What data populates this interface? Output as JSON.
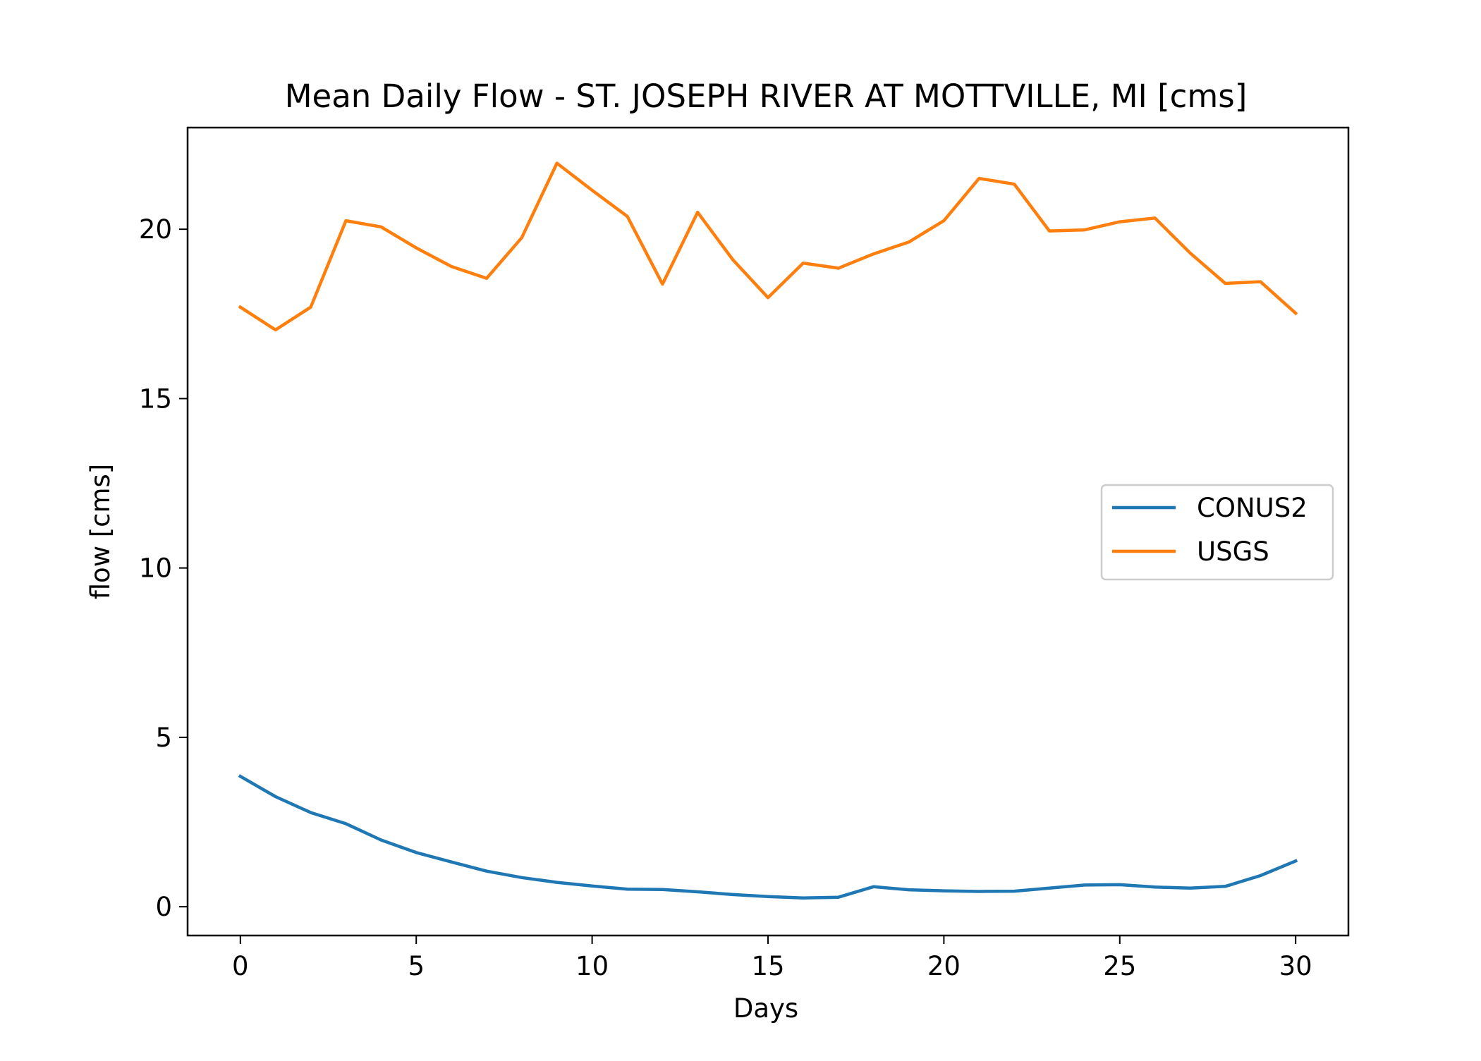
{
  "chart_data": {
    "type": "line",
    "title": "Mean Daily Flow - ST. JOSEPH RIVER AT MOTTVILLE, MI [cms]",
    "xlabel": "Days",
    "ylabel": "flow [cms]",
    "xlim": [
      -1.5,
      31.5
    ],
    "ylim": [
      -0.85,
      23
    ],
    "xticks": [
      0,
      5,
      10,
      15,
      20,
      25,
      30
    ],
    "yticks": [
      0,
      5,
      10,
      15,
      20
    ],
    "grid": false,
    "legend_position": "center-right",
    "x": [
      0,
      1,
      2,
      3,
      4,
      5,
      6,
      7,
      8,
      9,
      10,
      11,
      12,
      13,
      14,
      15,
      16,
      17,
      18,
      19,
      20,
      21,
      22,
      23,
      24,
      25,
      26,
      27,
      28,
      29,
      30
    ],
    "series": [
      {
        "name": "CONUS2",
        "color": "#1f77b4",
        "values": [
          3.85,
          3.25,
          2.78,
          2.45,
          1.97,
          1.6,
          1.32,
          1.05,
          0.86,
          0.72,
          0.61,
          0.52,
          0.51,
          0.44,
          0.36,
          0.3,
          0.26,
          0.28,
          0.59,
          0.5,
          0.47,
          0.45,
          0.46,
          0.55,
          0.64,
          0.65,
          0.58,
          0.55,
          0.6,
          0.92,
          1.35
        ]
      },
      {
        "name": "USGS",
        "color": "#ff7f0e",
        "values": [
          17.7,
          17.03,
          17.7,
          20.25,
          20.07,
          19.45,
          18.9,
          18.55,
          19.75,
          21.95,
          21.15,
          20.38,
          18.38,
          20.5,
          19.1,
          17.98,
          19.0,
          18.85,
          19.27,
          19.62,
          20.25,
          21.5,
          21.33,
          19.95,
          19.98,
          20.22,
          20.33,
          19.3,
          18.4,
          18.45,
          17.52
        ]
      }
    ]
  }
}
